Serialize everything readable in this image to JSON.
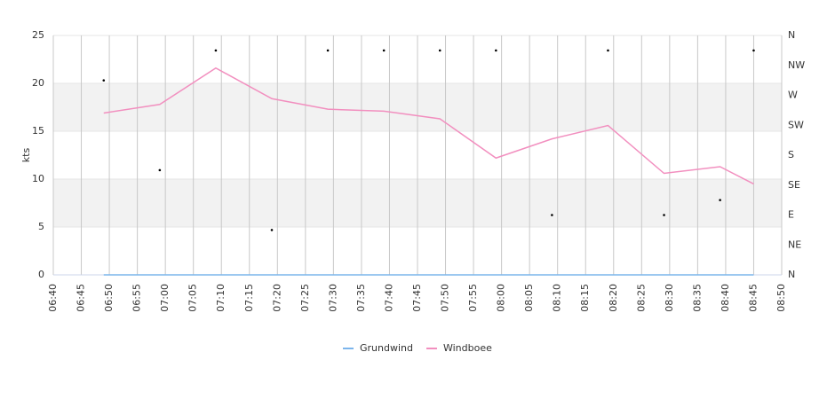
{
  "chart_data": {
    "type": "line",
    "y_label": "kts",
    "x": [
      "06:49",
      "06:59",
      "07:09",
      "07:19",
      "07:29",
      "07:39",
      "07:49",
      "07:59",
      "08:09",
      "08:19",
      "08:29",
      "08:39",
      "08:45"
    ],
    "xlim": [
      "06:40",
      "08:50"
    ],
    "xticks": [
      "06:40",
      "06:45",
      "06:50",
      "06:55",
      "07:00",
      "07:05",
      "07:10",
      "07:15",
      "07:20",
      "07:25",
      "07:30",
      "07:35",
      "07:40",
      "07:45",
      "07:50",
      "07:55",
      "08:00",
      "08:05",
      "08:10",
      "08:15",
      "08:20",
      "08:25",
      "08:30",
      "08:35",
      "08:40",
      "08:45",
      "08:50"
    ],
    "ylim": [
      0,
      25
    ],
    "yticks": [
      0,
      5,
      10,
      15,
      20,
      25
    ],
    "y2lim": [
      0,
      360
    ],
    "y2ticks": [
      {
        "value": 0,
        "label": "N"
      },
      {
        "value": 45,
        "label": "NE"
      },
      {
        "value": 90,
        "label": "E"
      },
      {
        "value": 135,
        "label": "SE"
      },
      {
        "value": 180,
        "label": "S"
      },
      {
        "value": 225,
        "label": "SW"
      },
      {
        "value": 270,
        "label": "W"
      },
      {
        "value": 315,
        "label": "NW"
      },
      {
        "value": 360,
        "label": "N"
      }
    ],
    "grid": true,
    "series": [
      {
        "name": "Grundwind",
        "color": "#7cb5ec",
        "values": [
          0,
          0,
          0,
          0,
          0,
          0,
          0,
          0,
          0,
          0,
          0,
          0,
          0
        ]
      },
      {
        "name": "Windboee",
        "color": "#f28fbf",
        "values": [
          16.9,
          17.8,
          21.6,
          18.4,
          17.3,
          17.1,
          16.3,
          12.2,
          14.2,
          15.6,
          10.6,
          11.3,
          9.5
        ]
      }
    ],
    "markers": {
      "axis": "y2",
      "color": "#000000",
      "values": [
        292.5,
        157.5,
        337.5,
        67.5,
        337.5,
        337.5,
        337.5,
        337.5,
        90,
        337.5,
        90,
        112.5,
        337.5
      ]
    }
  }
}
